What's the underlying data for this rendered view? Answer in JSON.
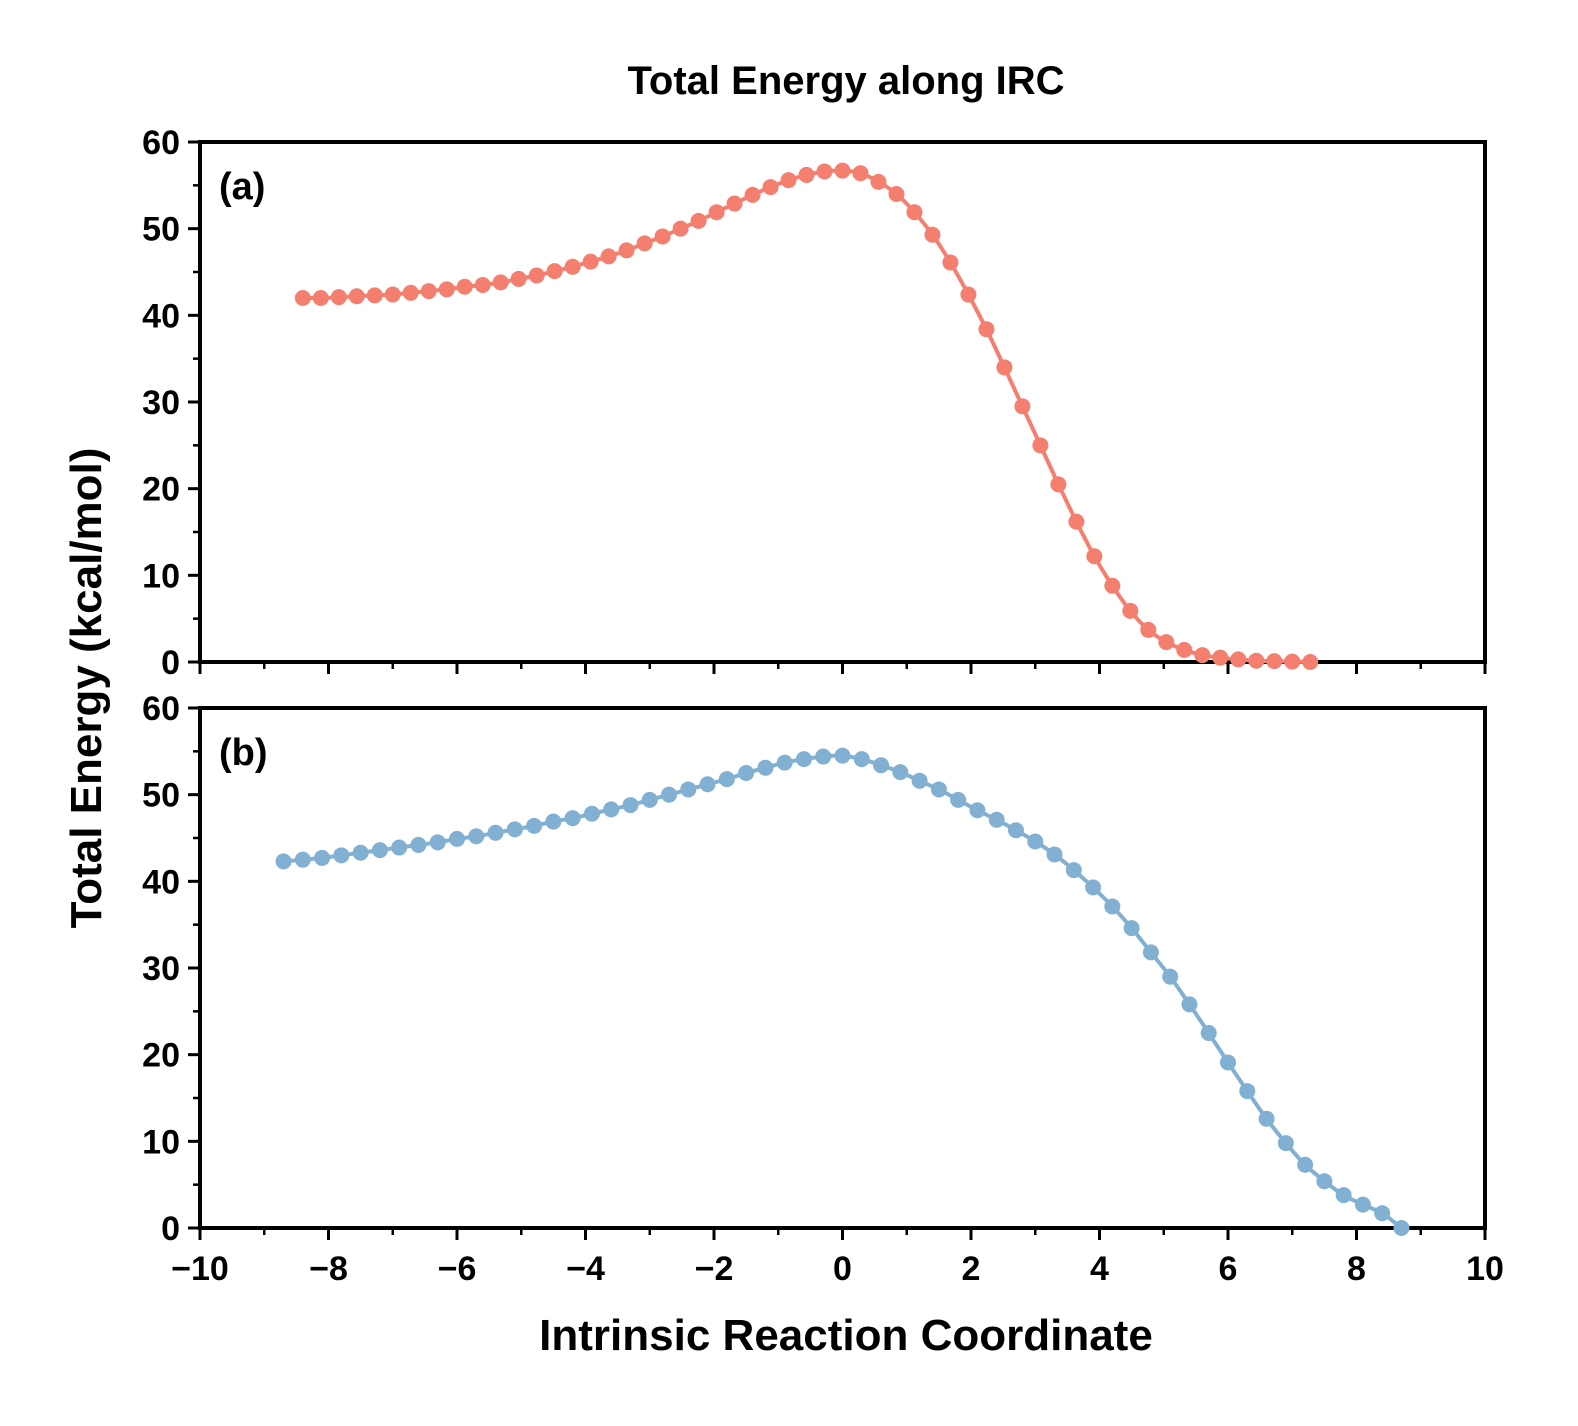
{
  "chart_data": {
    "type": "line",
    "title": "Total Energy along IRC",
    "xlabel": "Intrinsic Reaction Coordinate",
    "ylabel": "Total Energy (kcal/mol)",
    "xlim": [
      -10,
      10
    ],
    "x_ticks": [
      -10,
      -8,
      -6,
      -4,
      -2,
      0,
      2,
      4,
      6,
      8,
      10
    ],
    "x_tick_labels": [
      "−10",
      "−8",
      "−6",
      "−4",
      "−2",
      "0",
      "2",
      "4",
      "6",
      "8",
      "10"
    ],
    "grid": false,
    "panels": [
      {
        "label": "(a)",
        "color": "#F47F6E",
        "ylim": [
          0,
          60
        ],
        "y_ticks": [
          0,
          10,
          20,
          30,
          40,
          50,
          60
        ],
        "y_tick_labels": [
          "0",
          "10",
          "20",
          "30",
          "40",
          "50",
          "60"
        ],
        "series": [
          {
            "x": [
              -8.4,
              -8.12,
              -7.84,
              -7.56,
              -7.28,
              -7.0,
              -6.72,
              -6.44,
              -6.16,
              -5.88,
              -5.6,
              -5.32,
              -5.04,
              -4.76,
              -4.48,
              -4.2,
              -3.92,
              -3.64,
              -3.36,
              -3.08,
              -2.8,
              -2.52,
              -2.24,
              -1.96,
              -1.68,
              -1.4,
              -1.12,
              -0.84,
              -0.56,
              -0.28,
              0.0,
              0.28,
              0.56,
              0.84,
              1.12,
              1.4,
              1.68,
              1.96,
              2.24,
              2.52,
              2.8,
              3.08,
              3.36,
              3.64,
              3.92,
              4.2,
              4.48,
              4.76,
              5.04,
              5.32,
              5.6,
              5.88,
              6.16,
              6.44,
              6.72,
              7.0,
              7.28
            ],
            "y": [
              42.0,
              42.0,
              42.1,
              42.2,
              42.3,
              42.4,
              42.6,
              42.8,
              43.0,
              43.3,
              43.5,
              43.8,
              44.2,
              44.6,
              45.1,
              45.6,
              46.2,
              46.8,
              47.5,
              48.3,
              49.1,
              50.0,
              50.9,
              51.9,
              52.9,
              53.9,
              54.8,
              55.6,
              56.2,
              56.6,
              56.7,
              56.4,
              55.4,
              54.0,
              51.9,
              49.3,
              46.1,
              42.4,
              38.4,
              34.0,
              29.5,
              25.0,
              20.5,
              16.2,
              12.2,
              8.8,
              5.9,
              3.7,
              2.3,
              1.4,
              0.8,
              0.5,
              0.3,
              0.15,
              0.1,
              0.05,
              0.0
            ]
          }
        ]
      },
      {
        "label": "(b)",
        "color": "#82B0D2",
        "ylim": [
          0,
          60
        ],
        "y_ticks": [
          0,
          10,
          20,
          30,
          40,
          50,
          60
        ],
        "y_tick_labels": [
          "0",
          "10",
          "20",
          "30",
          "40",
          "50",
          "60"
        ],
        "series": [
          {
            "x": [
              -8.7,
              -8.4,
              -8.1,
              -7.8,
              -7.5,
              -7.2,
              -6.9,
              -6.6,
              -6.3,
              -6.0,
              -5.7,
              -5.4,
              -5.1,
              -4.8,
              -4.5,
              -4.2,
              -3.9,
              -3.6,
              -3.3,
              -3.0,
              -2.7,
              -2.4,
              -2.1,
              -1.8,
              -1.5,
              -1.2,
              -0.9,
              -0.6,
              -0.3,
              0.0,
              0.3,
              0.6,
              0.9,
              1.2,
              1.5,
              1.8,
              2.1,
              2.4,
              2.7,
              3.0,
              3.3,
              3.6,
              3.9,
              4.2,
              4.5,
              4.8,
              5.1,
              5.4,
              5.7,
              6.0,
              6.3,
              6.6,
              6.9,
              7.2,
              7.5,
              7.8,
              8.1,
              8.4,
              8.7
            ],
            "y": [
              42.3,
              42.5,
              42.7,
              43.0,
              43.3,
              43.6,
              43.9,
              44.2,
              44.5,
              44.9,
              45.2,
              45.6,
              46.0,
              46.4,
              46.9,
              47.3,
              47.8,
              48.3,
              48.8,
              49.4,
              50.0,
              50.6,
              51.2,
              51.8,
              52.5,
              53.1,
              53.7,
              54.1,
              54.4,
              54.5,
              54.1,
              53.4,
              52.6,
              51.6,
              50.6,
              49.4,
              48.2,
              47.1,
              45.9,
              44.6,
              43.1,
              41.3,
              39.3,
              37.1,
              34.6,
              31.8,
              29.0,
              25.8,
              22.5,
              19.1,
              15.8,
              12.6,
              9.8,
              7.3,
              5.4,
              3.8,
              2.7,
              1.7,
              0.0
            ]
          }
        ]
      }
    ]
  }
}
